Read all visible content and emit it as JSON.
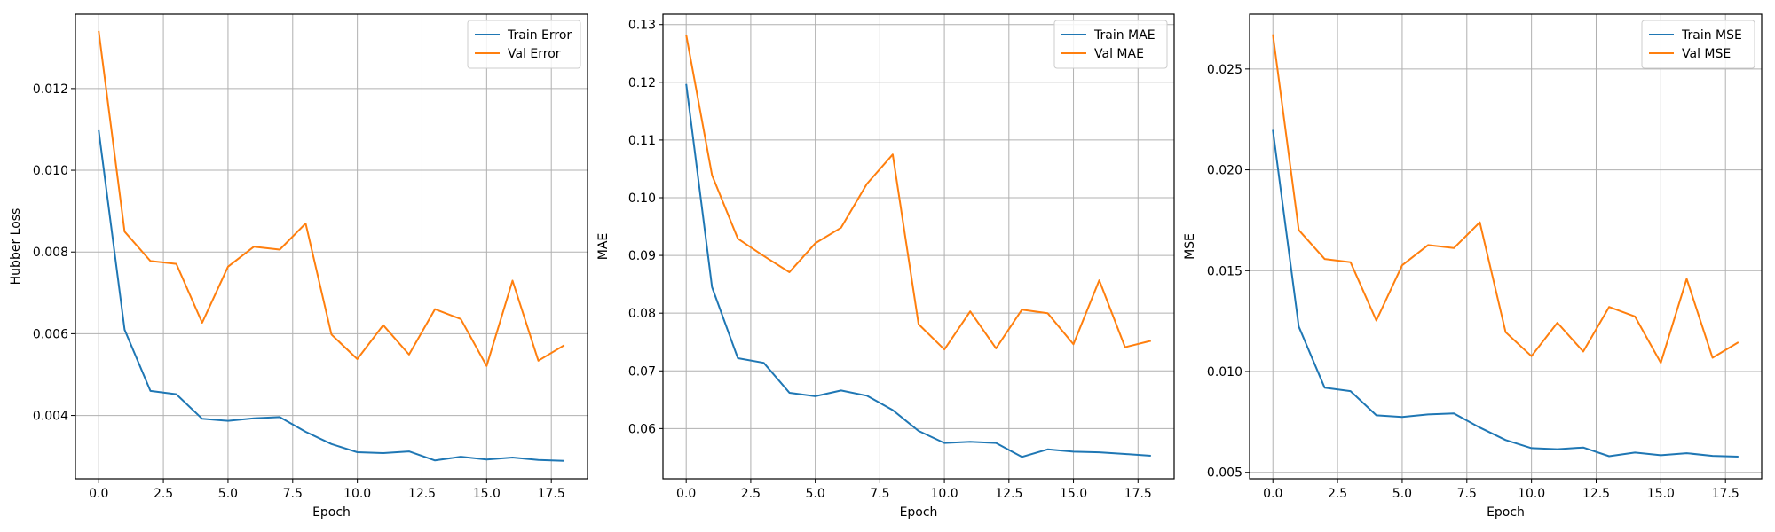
{
  "chart_data": [
    {
      "type": "line",
      "title": "",
      "xlabel": "Epoch",
      "ylabel": "Hubber Loss",
      "xlim": [
        -0.9,
        18.9
      ],
      "ylim": [
        0.00245,
        0.01382
      ],
      "xticks": [
        "0.0",
        "2.5",
        "5.0",
        "7.5",
        "10.0",
        "12.5",
        "15.0",
        "17.5"
      ],
      "xtick_values": [
        0,
        2.5,
        5,
        7.5,
        10,
        12.5,
        15,
        17.5
      ],
      "yticks": [
        "0.004",
        "0.006",
        "0.008",
        "0.010",
        "0.012"
      ],
      "ytick_values": [
        0.004,
        0.006,
        0.008,
        0.01,
        0.012
      ],
      "grid": true,
      "legend_position": "top-right",
      "x": [
        0,
        1,
        2,
        3,
        4,
        5,
        6,
        7,
        8,
        9,
        10,
        11,
        12,
        13,
        14,
        15,
        16,
        17,
        18
      ],
      "series": [
        {
          "name": "Train Error",
          "color": "#1f77b4",
          "values": [
            0.01098,
            0.0061,
            0.0046,
            0.00452,
            0.00392,
            0.00387,
            0.00393,
            0.00396,
            0.0036,
            0.0033,
            0.0031,
            0.00308,
            0.00312,
            0.0029,
            0.00299,
            0.00292,
            0.00297,
            0.00291,
            0.00289
          ]
        },
        {
          "name": "Val Error",
          "color": "#ff7f0e",
          "values": [
            0.01341,
            0.0085,
            0.00778,
            0.00771,
            0.00627,
            0.00764,
            0.00813,
            0.00806,
            0.0087,
            0.00598,
            0.00538,
            0.00621,
            0.00549,
            0.0066,
            0.00636,
            0.00521,
            0.0073,
            0.00534,
            0.00572
          ]
        }
      ]
    },
    {
      "type": "line",
      "title": "",
      "xlabel": "Epoch",
      "ylabel": "MAE",
      "xlim": [
        -0.9,
        18.9
      ],
      "ylim": [
        0.0513,
        0.1318
      ],
      "xticks": [
        "0.0",
        "2.5",
        "5.0",
        "7.5",
        "10.0",
        "12.5",
        "15.0",
        "17.5"
      ],
      "xtick_values": [
        0,
        2.5,
        5,
        7.5,
        10,
        12.5,
        15,
        17.5
      ],
      "yticks": [
        "0.06",
        "0.07",
        "0.08",
        "0.09",
        "0.10",
        "0.11",
        "0.12",
        "0.13"
      ],
      "ytick_values": [
        0.06,
        0.07,
        0.08,
        0.09,
        0.1,
        0.11,
        0.12,
        0.13
      ],
      "grid": true,
      "legend_position": "top-right",
      "x": [
        0,
        1,
        2,
        3,
        4,
        5,
        6,
        7,
        8,
        9,
        10,
        11,
        12,
        13,
        14,
        15,
        16,
        17,
        18
      ],
      "series": [
        {
          "name": "Train MAE",
          "color": "#1f77b4",
          "values": [
            0.1197,
            0.0845,
            0.0722,
            0.0714,
            0.0662,
            0.0656,
            0.0666,
            0.0657,
            0.0632,
            0.0596,
            0.0575,
            0.0577,
            0.0575,
            0.0551,
            0.0564,
            0.056,
            0.0559,
            0.0556,
            0.0553
          ]
        },
        {
          "name": "Val MAE",
          "color": "#ff7f0e",
          "values": [
            0.1282,
            0.1039,
            0.0929,
            0.0899,
            0.0871,
            0.0921,
            0.0948,
            0.1024,
            0.1075,
            0.0781,
            0.0737,
            0.0803,
            0.0739,
            0.0806,
            0.08,
            0.0746,
            0.0857,
            0.0741,
            0.0752
          ]
        }
      ]
    },
    {
      "type": "line",
      "title": "",
      "xlabel": "Epoch",
      "ylabel": "MSE",
      "xlim": [
        -0.9,
        18.9
      ],
      "ylim": [
        0.00468,
        0.02772
      ],
      "xticks": [
        "0.0",
        "2.5",
        "5.0",
        "7.5",
        "10.0",
        "12.5",
        "15.0",
        "17.5"
      ],
      "xtick_values": [
        0,
        2.5,
        5,
        7.5,
        10,
        12.5,
        15,
        17.5
      ],
      "yticks": [
        "0.005",
        "0.010",
        "0.015",
        "0.020",
        "0.025"
      ],
      "ytick_values": [
        0.005,
        0.01,
        0.015,
        0.02,
        0.025
      ],
      "grid": true,
      "legend_position": "top-right",
      "x": [
        0,
        1,
        2,
        3,
        4,
        5,
        6,
        7,
        8,
        9,
        10,
        11,
        12,
        13,
        14,
        15,
        16,
        17,
        18
      ],
      "series": [
        {
          "name": "Train MSE",
          "color": "#1f77b4",
          "values": [
            0.02198,
            0.01223,
            0.0092,
            0.00903,
            0.00783,
            0.00775,
            0.00787,
            0.00792,
            0.00722,
            0.0066,
            0.0062,
            0.00615,
            0.00623,
            0.0058,
            0.00598,
            0.00585,
            0.00595,
            0.00582,
            0.00578
          ]
        },
        {
          "name": "Val MSE",
          "color": "#ff7f0e",
          "values": [
            0.02672,
            0.01702,
            0.01558,
            0.01542,
            0.01253,
            0.01527,
            0.01627,
            0.01612,
            0.0174,
            0.01195,
            0.01076,
            0.01242,
            0.01099,
            0.0132,
            0.01273,
            0.01043,
            0.0146,
            0.01068,
            0.01145
          ]
        }
      ]
    }
  ]
}
